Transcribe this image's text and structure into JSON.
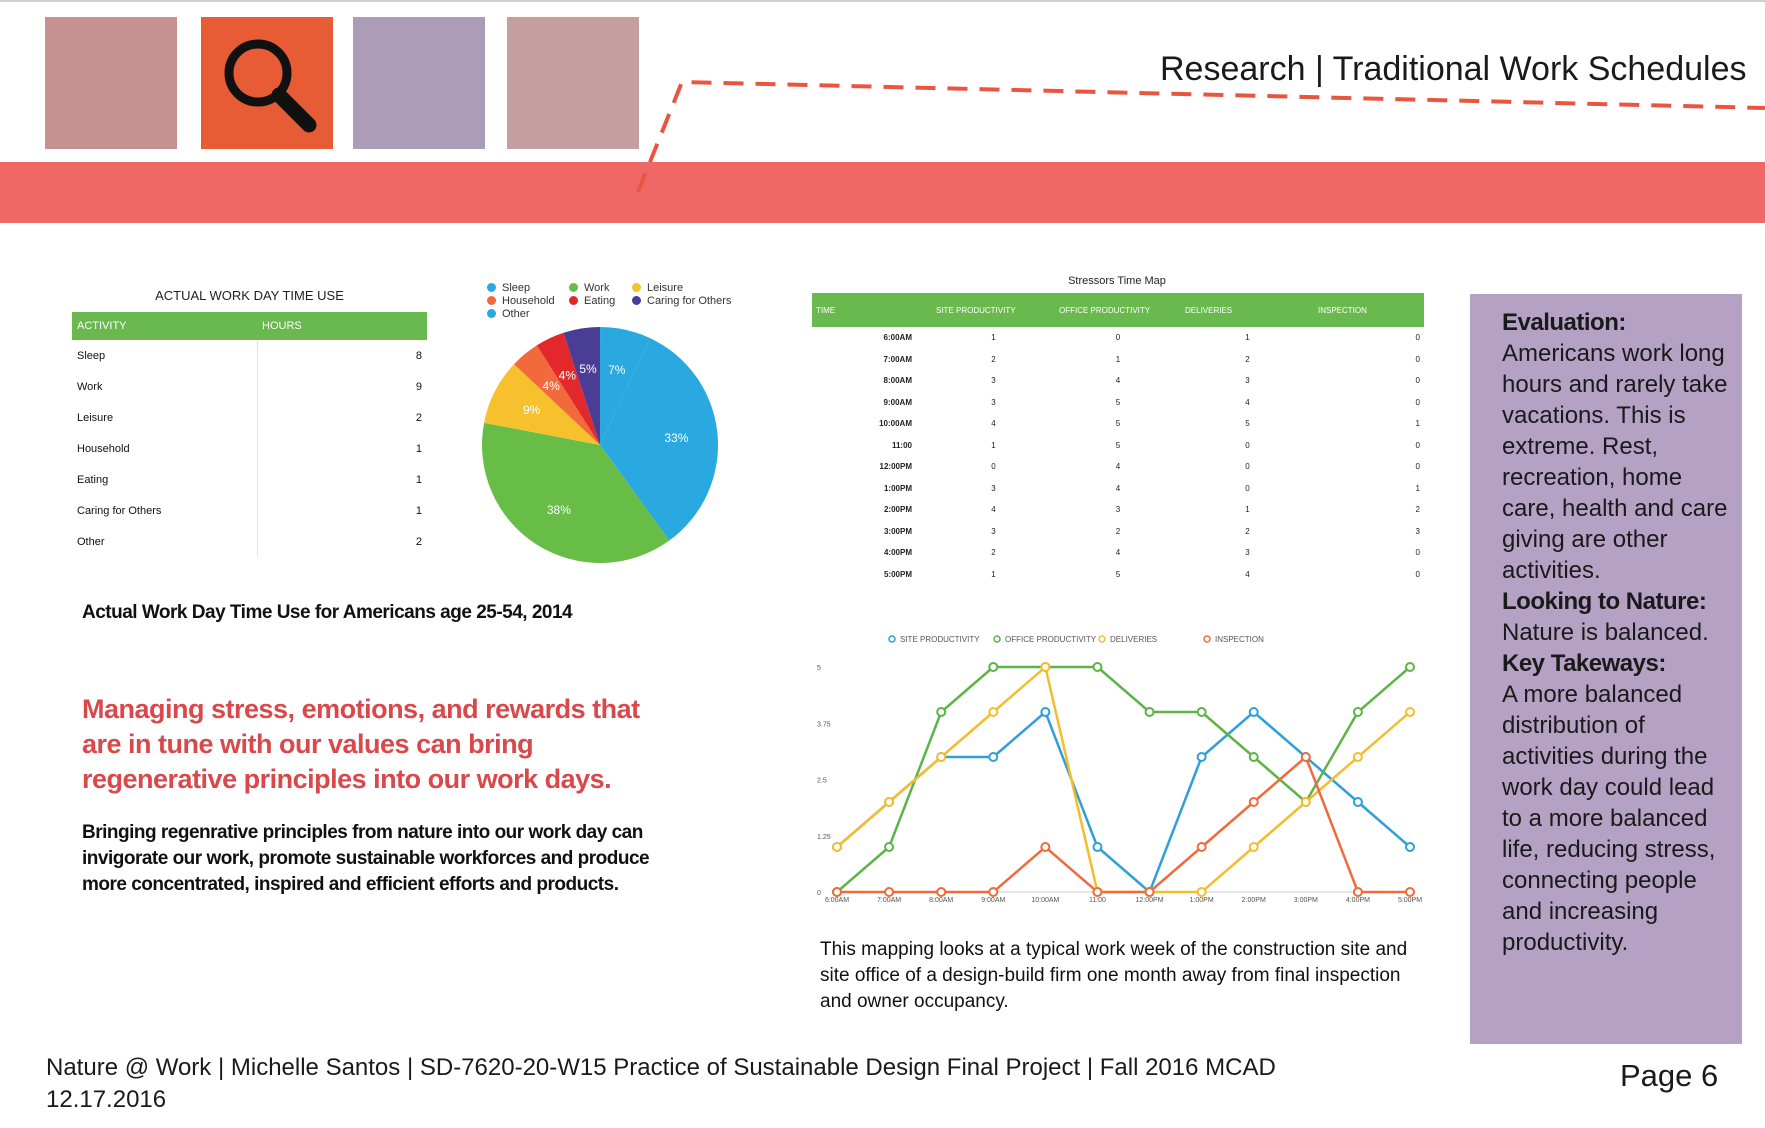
{
  "header": {
    "title": "Research | Traditional Work Schedules",
    "tiles": [
      {
        "color": "#c79190"
      },
      {
        "color": "#e85c35",
        "icon": "search-icon"
      },
      {
        "color": "#ad9cb7"
      },
      {
        "color": "#c59ea0"
      }
    ],
    "band_color": "#f06866"
  },
  "time_use": {
    "title": "ACTUAL WORK DAY TIME USE",
    "columns": [
      "ACTIVITY",
      "HOURS"
    ],
    "rows": [
      {
        "activity": "Sleep",
        "hours": "8"
      },
      {
        "activity": "Work",
        "hours": "9"
      },
      {
        "activity": "Leisure",
        "hours": "2"
      },
      {
        "activity": "Household",
        "hours": "1"
      },
      {
        "activity": "Eating",
        "hours": "1"
      },
      {
        "activity": "Caring for Others",
        "hours": "1"
      },
      {
        "activity": "Other",
        "hours": "2"
      }
    ],
    "caption": "Actual Work Day Time Use for Americans age 25-54, 2014"
  },
  "quote": "Managing stress, emotions, and rewards that are in tune with our values can bring regenerative principles into our work days.",
  "body_text": "Bringing regenrative principles from nature into our work day can invigorate our work, promote sustainable workforces and produce more concentrated, inspired and  efficient efforts and products.",
  "stressors": {
    "title": "Stressors Time Map",
    "columns": [
      "TIME",
      "SITE PRODUCTIVITY",
      "OFFICE PRODUCTIVITY",
      "DELIVERIES",
      "INSPECTION"
    ],
    "rows": [
      [
        "6:00AM",
        "1",
        "0",
        "1",
        "0"
      ],
      [
        "7:00AM",
        "2",
        "1",
        "2",
        "0"
      ],
      [
        "8:00AM",
        "3",
        "4",
        "3",
        "0"
      ],
      [
        "9:00AM",
        "3",
        "5",
        "4",
        "0"
      ],
      [
        "10:00AM",
        "4",
        "5",
        "5",
        "1"
      ],
      [
        "11:00",
        "1",
        "5",
        "0",
        "0"
      ],
      [
        "12:00PM",
        "0",
        "4",
        "0",
        "0"
      ],
      [
        "1:00PM",
        "3",
        "4",
        "0",
        "1"
      ],
      [
        "2:00PM",
        "4",
        "3",
        "1",
        "2"
      ],
      [
        "3:00PM",
        "3",
        "2",
        "2",
        "3"
      ],
      [
        "4:00PM",
        "2",
        "4",
        "3",
        "0"
      ],
      [
        "5:00PM",
        "1",
        "5",
        "4",
        "0"
      ]
    ]
  },
  "caption2": "This mapping looks at a typical work week of the construction site and site office of a design-build firm one month away from final inspection and owner occupancy.",
  "evaluation": {
    "h1": "Evaluation:",
    "t1": "Americans work long hours and rarely take vacations. This is extreme. Rest, recreation, home care, health and care giving are other activities.",
    "h2": "Looking to Nature:",
    "t2": "Nature is balanced.",
    "h3": "Key Takeways:",
    "t3": "A more balanced distribution of activities  during the work day could lead to a more balanced life, reducing stress, connecting people and  increasing productivity."
  },
  "footer": {
    "line1": "Nature @ Work | Michelle Santos | SD-7620-20-W15 Practice of Sustainable Design Final Project | Fall 2016 MCAD",
    "line2": "12.17.2016",
    "page": "Page 6"
  },
  "chart_data": [
    {
      "type": "pie",
      "title": "",
      "categories": [
        "Sleep",
        "Work",
        "Leisure",
        "Household",
        "Eating",
        "Caring for Others",
        "Other"
      ],
      "values": [
        33,
        38,
        9,
        4,
        4,
        5,
        7
      ],
      "labels": [
        "33%",
        "38%",
        "9%",
        "4%",
        "4%",
        "5%",
        "7%"
      ],
      "colors": [
        "#2aa8e0",
        "#67bd45",
        "#f7c12d",
        "#f2693b",
        "#e3282b",
        "#4a3d96",
        "#2aa8e0"
      ]
    },
    {
      "type": "line",
      "title": "",
      "categories": [
        "6:00AM",
        "7:00AM",
        "8:00AM",
        "9:00AM",
        "10:00AM",
        "11:00",
        "12:00PM",
        "1:00PM",
        "2:00PM",
        "3:00PM",
        "4:00PM",
        "5:00PM"
      ],
      "series": [
        {
          "name": "SITE PRODUCTIVITY",
          "color": "#2e9fd8",
          "values": [
            1,
            2,
            3,
            3,
            4,
            1,
            0,
            3,
            4,
            3,
            2,
            1
          ]
        },
        {
          "name": "OFFICE PRODUCTIVITY",
          "color": "#5cb445",
          "values": [
            0,
            1,
            4,
            5,
            5,
            5,
            4,
            4,
            3,
            2,
            4,
            5
          ]
        },
        {
          "name": "DELIVERIES",
          "color": "#f5bd2c",
          "values": [
            1,
            2,
            3,
            4,
            5,
            0,
            0,
            0,
            1,
            2,
            3,
            4
          ]
        },
        {
          "name": "INSPECTION",
          "color": "#f16a3c",
          "values": [
            0,
            0,
            0,
            0,
            1,
            0,
            0,
            1,
            2,
            3,
            0,
            0
          ]
        }
      ],
      "yticks": [
        "0",
        "1.25",
        "2.5",
        "3.75",
        "5"
      ],
      "ylim": [
        0,
        5
      ],
      "legend": "top"
    }
  ]
}
